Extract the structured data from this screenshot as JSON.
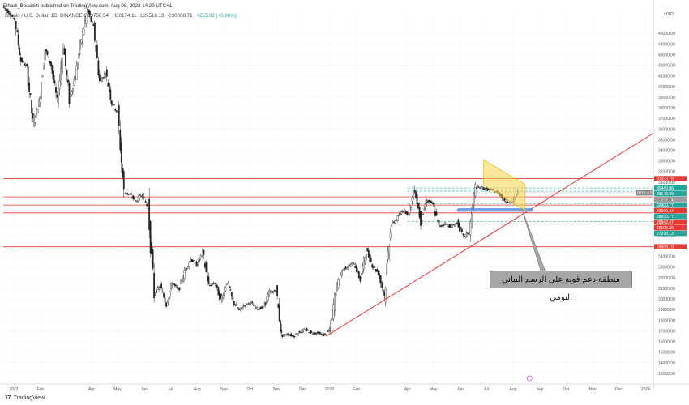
{
  "header": {
    "published": "Elhadi_Bouazizi published on TradingView.com, Aug 08, 2023 14:29 UTC+1",
    "symbol": "Bitcoin / U.S. Dollar, 1D, BINANCE",
    "open": "O29758.54",
    "high": "H30174.11",
    "low": "L29516.13",
    "close": "C30008.71",
    "change": "+255.02 (+0.86%)"
  },
  "annotation": {
    "text": "منطقة دعم قوية على الرسم البياني اليومي"
  },
  "branding": {
    "logo": "TradingView"
  },
  "chart_data": {
    "type": "candlestick",
    "title": "",
    "currency_label": "USD",
    "x_ticks": [
      {
        "label": "2022",
        "date": "2022-01-01"
      },
      {
        "label": "Feb",
        "date": "2022-02-01"
      },
      {
        "label": "Apr",
        "date": "2022-04-01"
      },
      {
        "label": "May",
        "date": "2022-05-01"
      },
      {
        "label": "Jun",
        "date": "2022-06-01"
      },
      {
        "label": "Jul",
        "date": "2022-07-01"
      },
      {
        "label": "Aug",
        "date": "2022-08-01"
      },
      {
        "label": "Sep",
        "date": "2022-09-01"
      },
      {
        "label": "Oct",
        "date": "2022-10-01"
      },
      {
        "label": "Nov",
        "date": "2022-11-01"
      },
      {
        "label": "Dec",
        "date": "2022-12-01"
      },
      {
        "label": "2023",
        "date": "2023-01-01"
      },
      {
        "label": "Feb",
        "date": "2023-02-01"
      },
      {
        "label": "Apr",
        "date": "2023-04-01"
      },
      {
        "label": "May",
        "date": "2023-05-01"
      },
      {
        "label": "Jun",
        "date": "2023-06-01"
      },
      {
        "label": "Jul",
        "date": "2023-07-01"
      },
      {
        "label": "Aug",
        "date": "2023-08-01"
      },
      {
        "label": "Sep",
        "date": "2023-09-01"
      },
      {
        "label": "Oct",
        "date": "2023-10-01"
      },
      {
        "label": "Nov",
        "date": "2023-11-01"
      },
      {
        "label": "Dec",
        "date": "2023-12-01"
      },
      {
        "label": "2024",
        "date": "2024-01-01"
      }
    ],
    "x_range": [
      "2021-12-20",
      "2024-01-10"
    ],
    "y_range": [
      12000,
      47000
    ],
    "y_ticks": [
      "45000.00",
      "44000.00",
      "43000.00",
      "42000.00",
      "41000.00",
      "40000.00",
      "39000.00",
      "38000.00",
      "37000.00",
      "36000.00",
      "35000.00",
      "34000.00",
      "33000.00",
      "32000.00",
      "31000.00",
      "30000.00",
      "29000.00",
      "28000.00",
      "27000.00",
      "26000.00",
      "25000.00",
      "24000.00",
      "23000.00",
      "22000.00",
      "21000.00",
      "20000.00",
      "19000.00",
      "18000.00",
      "17000.00",
      "16000.00",
      "15000.00",
      "14000.00",
      "13000.00"
    ],
    "price_path": [
      [
        "2021-12-20",
        47500
      ],
      [
        "2021-12-27",
        47000
      ],
      [
        "2022-01-03",
        46300
      ],
      [
        "2022-01-10",
        42500
      ],
      [
        "2022-01-17",
        41800
      ],
      [
        "2022-01-24",
        36500
      ],
      [
        "2022-01-31",
        38500
      ],
      [
        "2022-02-07",
        43500
      ],
      [
        "2022-02-14",
        42000
      ],
      [
        "2022-02-21",
        38500
      ],
      [
        "2022-02-28",
        44000
      ],
      [
        "2022-03-07",
        38800
      ],
      [
        "2022-03-14",
        41000
      ],
      [
        "2022-03-21",
        44500
      ],
      [
        "2022-03-28",
        47200
      ],
      [
        "2022-04-04",
        45500
      ],
      [
        "2022-04-11",
        40500
      ],
      [
        "2022-04-18",
        41300
      ],
      [
        "2022-04-25",
        38500
      ],
      [
        "2022-05-02",
        37500
      ],
      [
        "2022-05-09",
        30000
      ],
      [
        "2022-05-16",
        29800
      ],
      [
        "2022-05-23",
        29200
      ],
      [
        "2022-05-30",
        29900
      ],
      [
        "2022-06-06",
        28500
      ],
      [
        "2022-06-13",
        20500
      ],
      [
        "2022-06-20",
        21200
      ],
      [
        "2022-06-27",
        19500
      ],
      [
        "2022-07-04",
        21500
      ],
      [
        "2022-07-11",
        20800
      ],
      [
        "2022-07-18",
        22500
      ],
      [
        "2022-07-25",
        23800
      ],
      [
        "2022-08-01",
        23200
      ],
      [
        "2022-08-08",
        24400
      ],
      [
        "2022-08-15",
        21200
      ],
      [
        "2022-08-22",
        21500
      ],
      [
        "2022-08-29",
        19900
      ],
      [
        "2022-09-05",
        21600
      ],
      [
        "2022-09-12",
        19800
      ],
      [
        "2022-09-19",
        18900
      ],
      [
        "2022-09-26",
        19500
      ],
      [
        "2022-10-03",
        19600
      ],
      [
        "2022-10-10",
        19100
      ],
      [
        "2022-10-17",
        19200
      ],
      [
        "2022-10-24",
        20600
      ],
      [
        "2022-11-01",
        20800
      ],
      [
        "2022-11-07",
        16500
      ],
      [
        "2022-11-14",
        16700
      ],
      [
        "2022-11-21",
        16500
      ],
      [
        "2022-11-28",
        16900
      ],
      [
        "2022-12-05",
        17100
      ],
      [
        "2022-12-12",
        16800
      ],
      [
        "2022-12-19",
        16800
      ],
      [
        "2022-12-26",
        16600
      ],
      [
        "2023-01-02",
        17100
      ],
      [
        "2023-01-09",
        20900
      ],
      [
        "2023-01-16",
        22700
      ],
      [
        "2023-01-23",
        23100
      ],
      [
        "2023-01-30",
        23400
      ],
      [
        "2023-02-06",
        21800
      ],
      [
        "2023-02-13",
        24600
      ],
      [
        "2023-02-20",
        23200
      ],
      [
        "2023-02-27",
        22400
      ],
      [
        "2023-03-06",
        20300
      ],
      [
        "2023-03-13",
        26900
      ],
      [
        "2023-03-20",
        27500
      ],
      [
        "2023-03-27",
        28400
      ],
      [
        "2023-04-03",
        28000
      ],
      [
        "2023-04-10",
        30400
      ],
      [
        "2023-04-17",
        27300
      ],
      [
        "2023-04-24",
        29300
      ],
      [
        "2023-05-01",
        28900
      ],
      [
        "2023-05-08",
        26800
      ],
      [
        "2023-05-15",
        27100
      ],
      [
        "2023-05-22",
        26800
      ],
      [
        "2023-05-29",
        27200
      ],
      [
        "2023-06-05",
        25800
      ],
      [
        "2023-06-12",
        26300
      ],
      [
        "2023-06-19",
        30500
      ],
      [
        "2023-06-26",
        30500
      ],
      [
        "2023-07-03",
        30300
      ],
      [
        "2023-07-10",
        30200
      ],
      [
        "2023-07-17",
        29900
      ],
      [
        "2023-07-24",
        29200
      ],
      [
        "2023-07-31",
        29100
      ],
      [
        "2023-08-07",
        30008
      ]
    ],
    "horizontal_levels": [
      {
        "price": 31323.79,
        "label": "31323.79",
        "color": "#e53935",
        "style": "solid"
      },
      {
        "price": 30449.96,
        "label": "30449.96",
        "color": "#26a69a",
        "style": "dashed"
      },
      {
        "price": 30143.39,
        "label": "30143.39",
        "color": "#26a69a",
        "style": "dashed"
      },
      {
        "price": 30008.71,
        "label": "30008.71",
        "color": "#9e9e9e",
        "style": "dotted"
      },
      {
        "price": 29900.77,
        "label": "29900.77",
        "color": "#26a69a",
        "style": "dashed"
      },
      {
        "price": 29606.44,
        "label": "29606.44",
        "color": "#e53935",
        "style": "solid"
      },
      {
        "price": 28990.77,
        "label": "28990.77",
        "color": "#26a69a",
        "style": "dashed"
      },
      {
        "price": 28842.47,
        "label": "28842.47",
        "color": "#e53935",
        "style": "solid"
      },
      {
        "price": 28105.35,
        "label": "28105.35",
        "color": "#e53935",
        "style": "solid"
      },
      {
        "price": 27278.13,
        "label": "27278.13",
        "color": "#26a69a",
        "style": "dashed"
      },
      {
        "price": 24909.19,
        "label": "24909.19",
        "color": "#e53935",
        "style": "solid"
      }
    ],
    "price_tag": {
      "symbol": "BTCUSD",
      "price": "30008.71",
      "countdown": "09:30:39"
    },
    "trendline": {
      "from": [
        "2022-12-28",
        16500
      ],
      "to": [
        "2024-01-10",
        35600
      ],
      "color": "#e53935"
    },
    "support_zone": {
      "start": "2023-05-28",
      "end": "2023-08-24",
      "low": 28200,
      "high": 28550,
      "color": "#5c8fe0"
    },
    "channel": {
      "points": [
        [
          "2023-06-28",
          33100
        ],
        [
          "2023-08-15",
          30800
        ],
        [
          "2023-08-15",
          28300
        ],
        [
          "2023-06-28",
          30700
        ]
      ],
      "color": "#f5d44a"
    },
    "arrow": {
      "tip": [
        "2023-08-11",
        28500
      ],
      "base": [
        "2023-09-08",
        21800
      ],
      "color": "#a6a6a6"
    }
  }
}
